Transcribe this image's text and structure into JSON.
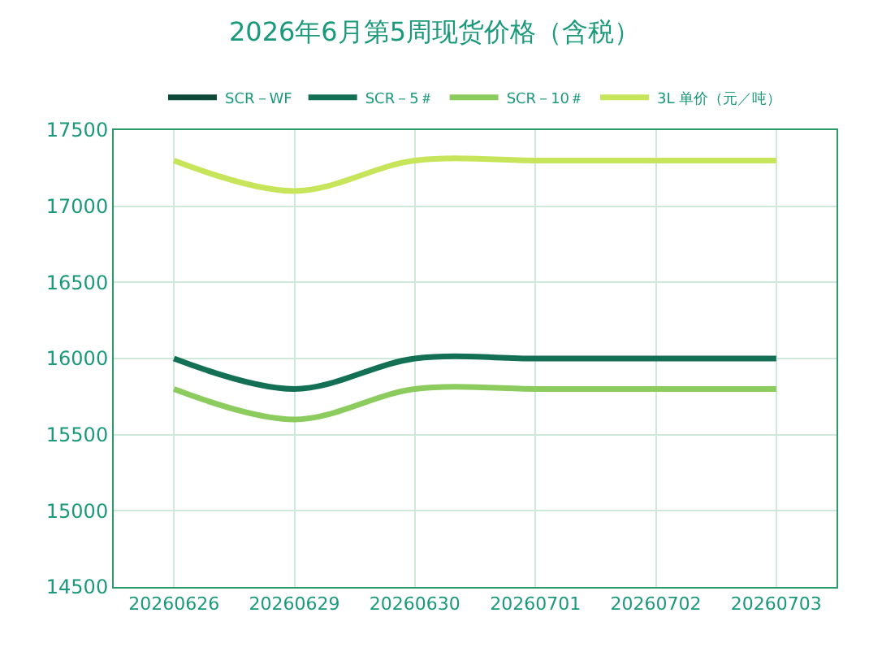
{
  "chart_data": {
    "type": "line",
    "title": "2026年6月第5周现货价格（含税）",
    "categories": [
      "20260626",
      "20260629",
      "20260630",
      "20260701",
      "20260702",
      "20260703"
    ],
    "series": [
      {
        "name": "SCR－WF",
        "color": "#0d4a38",
        "values": [
          null,
          null,
          null,
          null,
          null,
          null
        ]
      },
      {
        "name": "SCR－5＃",
        "color": "#137054",
        "values": [
          16000,
          15800,
          16000,
          16000,
          16000,
          16000
        ]
      },
      {
        "name": "SCR－10＃",
        "color": "#8ccb5e",
        "values": [
          15800,
          15600,
          15800,
          15800,
          15800,
          15800
        ]
      },
      {
        "name": "3L 单价（元／吨）",
        "color": "#c6e55a",
        "values": [
          17300,
          17100,
          17300,
          17300,
          17300,
          17300
        ]
      }
    ],
    "ylim": [
      14500,
      17500
    ],
    "yticks": [
      14500,
      15000,
      15500,
      16000,
      16500,
      17000,
      17500
    ],
    "grid": true,
    "legend": "top",
    "marker": "none",
    "line_style": "solid"
  }
}
